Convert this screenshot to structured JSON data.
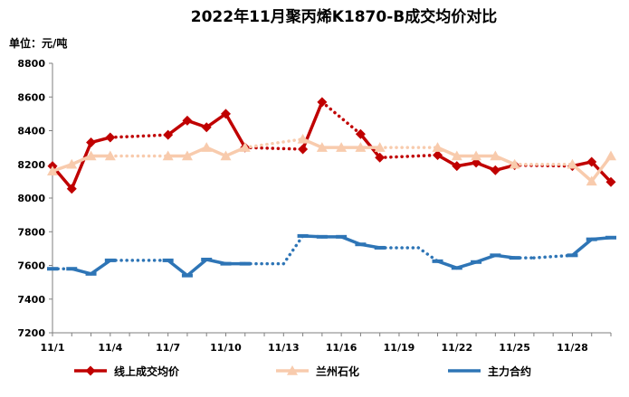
{
  "chart_data": {
    "type": "line",
    "title": "2022年11月聚丙烯K1870-B成交均价对比",
    "unit_label": "单位：元/吨",
    "ylim": [
      7200,
      8800
    ],
    "yticks": [
      "7200",
      "7400",
      "7600",
      "7800",
      "8000",
      "8200",
      "8400",
      "8600",
      "8800"
    ],
    "xlim": [
      1,
      30
    ],
    "xticks": [
      {
        "label": "11/1",
        "x": 1
      },
      {
        "label": "11/4",
        "x": 4
      },
      {
        "label": "11/7",
        "x": 7
      },
      {
        "label": "11/10",
        "x": 10
      },
      {
        "label": "11/13",
        "x": 13
      },
      {
        "label": "11/16",
        "x": 16
      },
      {
        "label": "11/19",
        "x": 19
      },
      {
        "label": "11/22",
        "x": 22
      },
      {
        "label": "11/25",
        "x": 25
      },
      {
        "label": "11/28",
        "x": 28
      }
    ],
    "grid": "none",
    "legend_position": "bottom",
    "series": [
      {
        "name": "线上成交均价",
        "color": "#C00000",
        "marker": "diamond",
        "points": [
          [
            1,
            8190
          ],
          [
            2,
            8055
          ],
          [
            3,
            8330
          ],
          [
            4,
            8360
          ],
          [
            7,
            8375
          ],
          [
            8,
            8460
          ],
          [
            9,
            8420
          ],
          [
            10,
            8500
          ],
          [
            11,
            8300
          ],
          [
            14,
            8290
          ],
          [
            15,
            8570
          ],
          [
            17,
            8380
          ],
          [
            18,
            8240
          ],
          [
            21,
            8255
          ],
          [
            22,
            8190
          ],
          [
            23,
            8210
          ],
          [
            24,
            8165
          ],
          [
            25,
            8195
          ],
          [
            28,
            8190
          ],
          [
            29,
            8215
          ],
          [
            30,
            8095
          ]
        ],
        "dotted_gaps": [
          [
            4,
            7
          ],
          [
            11,
            14
          ],
          [
            15,
            17
          ],
          [
            18,
            21
          ],
          [
            25,
            28
          ]
        ]
      },
      {
        "name": "兰州石化",
        "color": "#F8CBAD",
        "marker": "triangle",
        "points": [
          [
            1,
            8160
          ],
          [
            2,
            8200
          ],
          [
            3,
            8250
          ],
          [
            4,
            8250
          ],
          [
            7,
            8250
          ],
          [
            8,
            8250
          ],
          [
            9,
            8300
          ],
          [
            10,
            8250
          ],
          [
            11,
            8300
          ],
          [
            14,
            8350
          ],
          [
            15,
            8300
          ],
          [
            16,
            8300
          ],
          [
            17,
            8300
          ],
          [
            18,
            8300
          ],
          [
            21,
            8300
          ],
          [
            22,
            8250
          ],
          [
            23,
            8250
          ],
          [
            24,
            8250
          ],
          [
            25,
            8200
          ],
          [
            28,
            8200
          ],
          [
            29,
            8100
          ],
          [
            30,
            8250
          ]
        ],
        "dotted_gaps": [
          [
            4,
            7
          ],
          [
            11,
            14
          ],
          [
            18,
            21
          ],
          [
            25,
            28
          ]
        ]
      },
      {
        "name": "主力合约",
        "color": "#2E75B6",
        "marker": "dash",
        "points": [
          [
            1,
            7580
          ],
          [
            2,
            7580
          ],
          [
            3,
            7550
          ],
          [
            4,
            7630
          ],
          [
            7,
            7630
          ],
          [
            8,
            7540
          ],
          [
            9,
            7635
          ],
          [
            10,
            7610
          ],
          [
            11,
            7610
          ],
          [
            13,
            7610
          ],
          [
            14,
            7775
          ],
          [
            15,
            7770
          ],
          [
            16,
            7770
          ],
          [
            17,
            7725
          ],
          [
            18,
            7705
          ],
          [
            20,
            7705
          ],
          [
            21,
            7625
          ],
          [
            22,
            7585
          ],
          [
            23,
            7620
          ],
          [
            24,
            7660
          ],
          [
            25,
            7645
          ],
          [
            26,
            7645
          ],
          [
            28,
            7660
          ],
          [
            29,
            7755
          ],
          [
            30,
            7765
          ]
        ],
        "dotted_gaps": [
          [
            1,
            2
          ],
          [
            4,
            7
          ],
          [
            11,
            13
          ],
          [
            13,
            14
          ],
          [
            18,
            20
          ],
          [
            20,
            21
          ],
          [
            25,
            26
          ],
          [
            26,
            28
          ]
        ]
      }
    ]
  }
}
